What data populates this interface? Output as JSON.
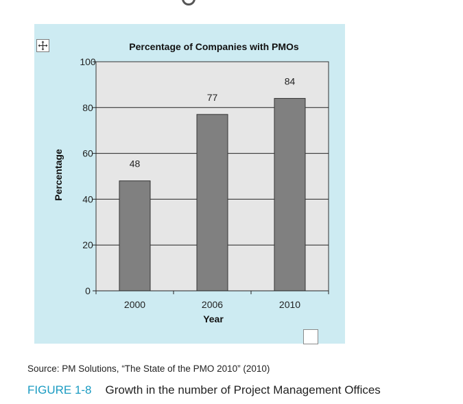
{
  "chart_data": {
    "type": "bar",
    "title": "Percentage of Companies with PMOs",
    "xlabel": "Year",
    "ylabel": "Percentage",
    "categories": [
      "2000",
      "2006",
      "2010"
    ],
    "values": [
      48,
      77,
      84
    ],
    "data_labels": [
      "48",
      "77",
      "84"
    ],
    "ytick_labels": [
      "100",
      "80",
      "60",
      "40",
      "20",
      "0"
    ],
    "ylim": [
      0,
      100
    ],
    "grid": true,
    "bar_color": "#808080",
    "plot_bg": "#e6e6e6"
  },
  "source": "Source: PM Solutions, “The State of the PMO 2010” (2010)",
  "figure": {
    "label": "FIGURE 1-8",
    "caption": "Growth in the number of Project Management Offices"
  },
  "icons": {
    "move": "move-arrows-icon",
    "checkbox": "checkbox-icon"
  }
}
